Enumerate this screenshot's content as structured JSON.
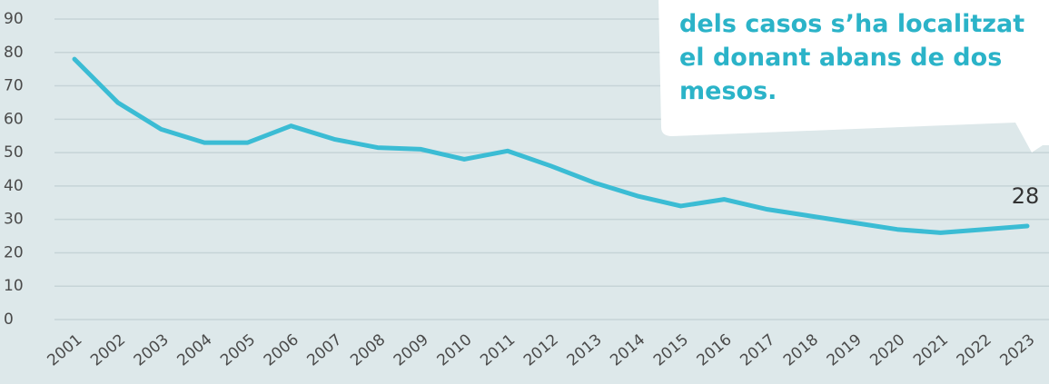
{
  "chart_data": {
    "type": "line",
    "categories": [
      "2001",
      "2002",
      "2003",
      "2004",
      "2005",
      "2006",
      "2007",
      "2008",
      "2009",
      "2010",
      "2011",
      "2012",
      "2013",
      "2014",
      "2015",
      "2016",
      "2017",
      "2018",
      "2019",
      "2020",
      "2021",
      "2022",
      "2023"
    ],
    "values": [
      78,
      65,
      57,
      53,
      53,
      58,
      54,
      51.5,
      51,
      48,
      50.5,
      46,
      41,
      37,
      34,
      36,
      33,
      31,
      29,
      27,
      26,
      27,
      28
    ],
    "color": "#3bbcd4",
    "ylim": [
      0,
      90
    ],
    "yticks": [
      0,
      10,
      20,
      30,
      40,
      50,
      60,
      70,
      80,
      90
    ],
    "grid": true,
    "annotation": [
      "dels casos s’ha localitzat",
      "el donant abans de dos",
      "mesos."
    ]
  }
}
